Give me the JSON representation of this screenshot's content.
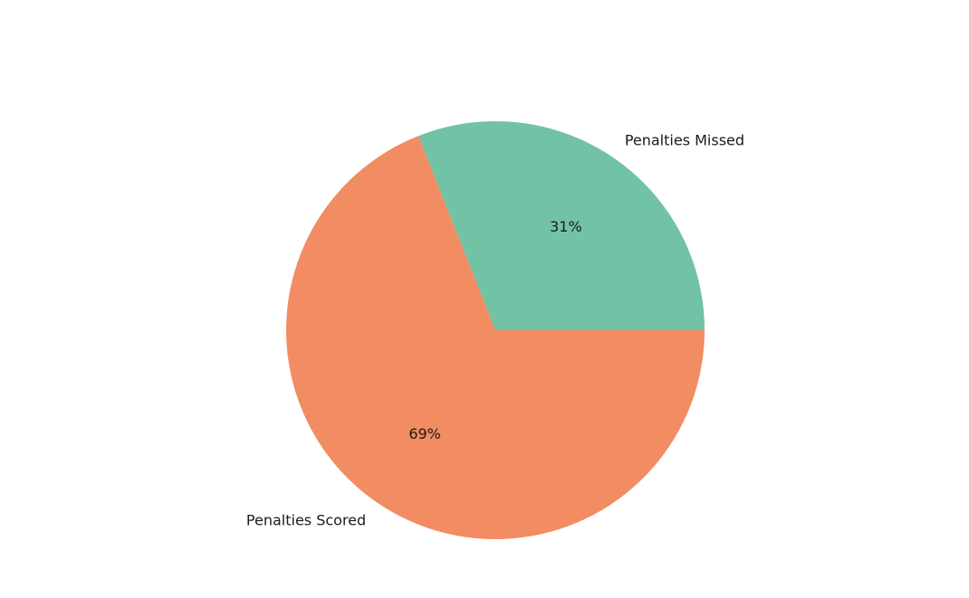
{
  "chart_data": {
    "type": "pie",
    "title": "",
    "start_angle_deg": 0,
    "direction": "counterclockwise",
    "slices": [
      {
        "label": "Penalties Missed",
        "value": 31,
        "pct_label": "31%",
        "color": "#72c2a5"
      },
      {
        "label": "Penalties Scored",
        "value": 69,
        "pct_label": "69%",
        "color": "#f28c62"
      }
    ]
  }
}
